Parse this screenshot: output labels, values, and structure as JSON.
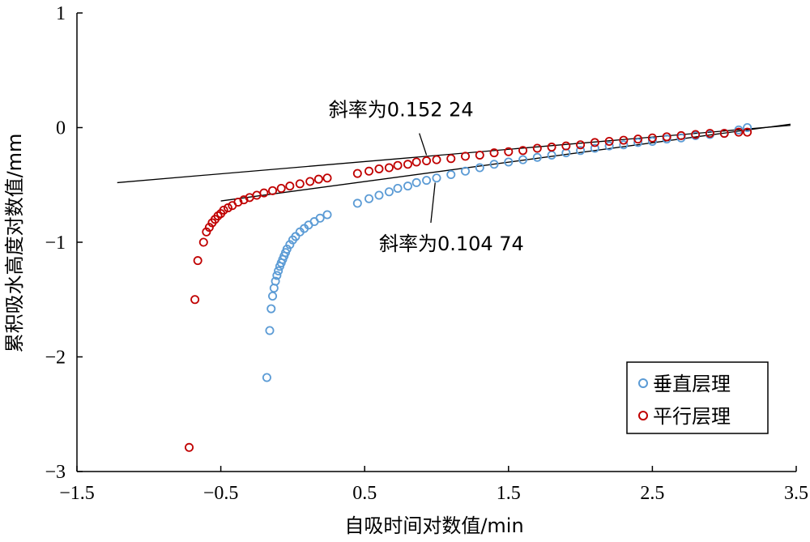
{
  "chart_data": {
    "type": "scatter",
    "xlabel": "自吸时间对数值/min",
    "ylabel": "累积吸水高度对数值/mm",
    "xlim": [
      -1.5,
      3.5
    ],
    "ylim": [
      -3,
      1
    ],
    "x_ticks": [
      -1.5,
      -0.5,
      0.5,
      1.5,
      2.5,
      3.5
    ],
    "x_tick_labels": [
      "−1.5",
      "−0.5",
      "0.5",
      "1.5",
      "2.5",
      "3.5"
    ],
    "y_ticks": [
      1,
      0,
      -1,
      -2,
      -3
    ],
    "y_tick_labels": [
      "1",
      "0",
      "−1",
      "−2",
      "−3"
    ],
    "grid": false,
    "legend_position": "bottom-right",
    "series": [
      {
        "name": "垂直层理",
        "color": "#5b9bd5",
        "marker": "open-circle",
        "x": [
          -0.18,
          -0.16,
          -0.15,
          -0.14,
          -0.13,
          -0.12,
          -0.11,
          -0.1,
          -0.09,
          -0.08,
          -0.07,
          -0.06,
          -0.05,
          -0.04,
          -0.02,
          0.0,
          0.02,
          0.05,
          0.08,
          0.11,
          0.15,
          0.19,
          0.24,
          0.45,
          0.53,
          0.6,
          0.67,
          0.73,
          0.8,
          0.86,
          0.93,
          1.0,
          1.1,
          1.2,
          1.3,
          1.4,
          1.5,
          1.6,
          1.7,
          1.8,
          1.9,
          2.0,
          2.1,
          2.2,
          2.3,
          2.4,
          2.5,
          2.6,
          2.7,
          2.8,
          2.9,
          3.0,
          3.1,
          3.16
        ],
        "y": [
          -2.18,
          -1.77,
          -1.58,
          -1.47,
          -1.4,
          -1.34,
          -1.29,
          -1.25,
          -1.21,
          -1.18,
          -1.15,
          -1.12,
          -1.09,
          -1.06,
          -1.02,
          -0.98,
          -0.95,
          -0.91,
          -0.88,
          -0.85,
          -0.82,
          -0.79,
          -0.76,
          -0.66,
          -0.62,
          -0.59,
          -0.56,
          -0.53,
          -0.51,
          -0.48,
          -0.46,
          -0.44,
          -0.41,
          -0.38,
          -0.35,
          -0.32,
          -0.3,
          -0.28,
          -0.26,
          -0.24,
          -0.22,
          -0.2,
          -0.18,
          -0.16,
          -0.15,
          -0.13,
          -0.12,
          -0.1,
          -0.09,
          -0.07,
          -0.06,
          -0.05,
          -0.02,
          0.0
        ]
      },
      {
        "name": "平行层理",
        "color": "#c00000",
        "marker": "open-circle",
        "x": [
          -0.72,
          -0.68,
          -0.66,
          -0.62,
          -0.6,
          -0.58,
          -0.56,
          -0.54,
          -0.52,
          -0.5,
          -0.48,
          -0.45,
          -0.42,
          -0.38,
          -0.34,
          -0.3,
          -0.25,
          -0.2,
          -0.14,
          -0.08,
          -0.02,
          0.05,
          0.12,
          0.18,
          0.24,
          0.45,
          0.53,
          0.6,
          0.67,
          0.73,
          0.8,
          0.86,
          0.93,
          1.0,
          1.1,
          1.2,
          1.3,
          1.4,
          1.5,
          1.6,
          1.7,
          1.8,
          1.9,
          2.0,
          2.1,
          2.2,
          2.3,
          2.4,
          2.5,
          2.6,
          2.7,
          2.8,
          2.9,
          3.0,
          3.1,
          3.16
        ],
        "y": [
          -2.79,
          -1.5,
          -1.16,
          -1.0,
          -0.91,
          -0.87,
          -0.83,
          -0.8,
          -0.77,
          -0.75,
          -0.72,
          -0.7,
          -0.68,
          -0.65,
          -0.63,
          -0.61,
          -0.59,
          -0.57,
          -0.55,
          -0.53,
          -0.51,
          -0.49,
          -0.47,
          -0.45,
          -0.44,
          -0.4,
          -0.38,
          -0.36,
          -0.35,
          -0.33,
          -0.32,
          -0.3,
          -0.29,
          -0.28,
          -0.27,
          -0.25,
          -0.24,
          -0.22,
          -0.21,
          -0.2,
          -0.18,
          -0.17,
          -0.16,
          -0.15,
          -0.13,
          -0.12,
          -0.11,
          -0.1,
          -0.09,
          -0.08,
          -0.07,
          -0.06,
          -0.05,
          -0.05,
          -0.04,
          -0.04
        ]
      }
    ],
    "fit_lines": [
      {
        "x": [
          -1.22,
          3.46
        ],
        "y": [
          -0.48,
          0.02
        ]
      },
      {
        "x": [
          -0.5,
          3.46
        ],
        "y": [
          -0.64,
          0.03
        ]
      }
    ],
    "annotations": [
      {
        "text": "斜率为0.152 24",
        "x": 0.25,
        "y": 0.1,
        "pointer_x": [
          0.88,
          0.93
        ],
        "pointer_y": [
          -0.05,
          -0.24
        ]
      },
      {
        "text": "斜率为0.104 74",
        "x": 0.6,
        "y": -1.07,
        "pointer_x": [
          0.96,
          0.99
        ],
        "pointer_y": [
          -0.83,
          -0.48
        ]
      }
    ]
  }
}
